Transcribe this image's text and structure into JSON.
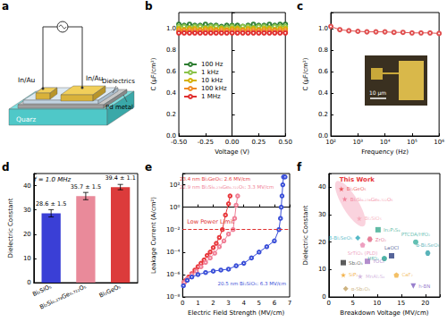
{
  "panel_labels": [
    "a",
    "b",
    "c",
    "d",
    "e",
    "f"
  ],
  "diagram": {
    "electrodes": [
      "In/Au",
      "In/Au"
    ],
    "layers": [
      "Dielectrics",
      "Pd metal",
      "Quarz"
    ]
  },
  "chart_data": [
    {
      "type": "line",
      "x_label": "Voltage (V)",
      "y_label": "C (μF/cm²)",
      "x": [
        -0.5,
        -0.45,
        -0.4,
        -0.35,
        -0.3,
        -0.25,
        -0.2,
        -0.15,
        -0.1,
        -0.05,
        0,
        0.05,
        0.1,
        0.15,
        0.2,
        0.25,
        0.3,
        0.35,
        0.4,
        0.45,
        0.5
      ],
      "series": [
        {
          "name": "100 Hz",
          "color": "#2e7d32",
          "values": [
            1.04,
            1.03,
            1.04,
            1.03,
            1.03,
            1.04,
            1.03,
            1.03,
            1.02,
            1.03,
            1.03,
            1.03,
            1.02,
            1.03,
            1.04,
            1.03,
            1.03,
            1.04,
            1.03,
            1.04,
            1.04
          ]
        },
        {
          "name": "1 kHz",
          "color": "#8bc34a",
          "values": [
            1.02,
            1.02,
            1.01,
            1.02,
            1.02,
            1.01,
            1.02,
            1.02,
            1.01,
            1.01,
            1.02,
            1.01,
            1.02,
            1.02,
            1.01,
            1.02,
            1.02,
            1.01,
            1.02,
            1.02,
            1.02
          ]
        },
        {
          "name": "10 kHz",
          "color": "#d4b000",
          "values": [
            1.0,
            0.99,
            1.0,
            1.0,
            0.99,
            1.0,
            1.0,
            0.99,
            1.0,
            0.99,
            1.0,
            1.0,
            0.99,
            1.0,
            1.0,
            0.99,
            1.0,
            1.0,
            0.99,
            1.0,
            1.0
          ]
        },
        {
          "name": "100 kHz",
          "color": "#f08a24",
          "values": [
            0.98,
            0.98,
            0.98,
            0.98,
            0.98,
            0.98,
            0.98,
            0.98,
            0.98,
            0.98,
            0.98,
            0.98,
            0.98,
            0.98,
            0.98,
            0.98,
            0.98,
            0.98,
            0.98,
            0.98,
            0.98
          ]
        },
        {
          "name": "1 MHz",
          "color": "#e03030",
          "values": [
            0.96,
            0.96,
            0.96,
            0.96,
            0.96,
            0.96,
            0.96,
            0.96,
            0.96,
            0.96,
            0.96,
            0.96,
            0.96,
            0.96,
            0.96,
            0.96,
            0.96,
            0.96,
            0.96,
            0.96,
            0.96
          ]
        }
      ],
      "marker": "open-circle",
      "line_style": "solid",
      "xlim": [
        -0.5,
        0.5
      ],
      "xticks": [
        {
          "value": -0.5,
          "label": "-0.50"
        },
        {
          "value": -0.25,
          "label": "-0.25"
        },
        {
          "value": 0,
          "label": "0.00"
        },
        {
          "value": 0.25,
          "label": "0.25"
        },
        {
          "value": 0.5,
          "label": "0.50"
        }
      ],
      "ylim": [
        0,
        1.15
      ],
      "yticks": [
        {
          "value": 0,
          "label": "0.0"
        },
        {
          "value": 0.2,
          "label": "0.2"
        },
        {
          "value": 0.4,
          "label": "0.4"
        },
        {
          "value": 0.6,
          "label": "0.6"
        },
        {
          "value": 0.8,
          "label": "0.8"
        },
        {
          "value": 1,
          "label": "1.0"
        }
      ],
      "legend": "left",
      "grid": false
    },
    {
      "type": "line",
      "x_label": "Frequency (Hz)",
      "y_label": "C (μF/cm²)",
      "log": "x",
      "x": [
        100,
        215,
        464,
        1000,
        2154,
        4642,
        10000,
        21544,
        46416,
        100000,
        215443,
        464159,
        1000000
      ],
      "values": [
        1.02,
        0.99,
        0.98,
        0.975,
        0.97,
        0.97,
        0.97,
        0.965,
        0.965,
        0.96,
        0.96,
        0.96,
        0.955
      ],
      "color": "#e05050",
      "marker": "open-circle",
      "line_style": "solid",
      "xlim": [
        100,
        1000000
      ],
      "xticks": [
        {
          "value": 100,
          "label": "10²"
        },
        {
          "value": 1000,
          "label": "10³"
        },
        {
          "value": 10000,
          "label": "10⁴"
        },
        {
          "value": 100000,
          "label": "10⁵"
        },
        {
          "value": 1000000,
          "label": "10⁶"
        }
      ],
      "ylim": [
        0,
        1.15
      ],
      "yticks": [
        {
          "value": 0,
          "label": "0.0"
        },
        {
          "value": 0.2,
          "label": "0.2"
        },
        {
          "value": 0.4,
          "label": "0.4"
        },
        {
          "value": 0.6,
          "label": "0.6"
        },
        {
          "value": 0.8,
          "label": "0.8"
        },
        {
          "value": 1,
          "label": "1.0"
        }
      ],
      "annotations": [
        "10 μm"
      ],
      "grid": false
    },
    {
      "type": "bar",
      "y_label": "Dielectric Constant",
      "categories": [
        "Bi₂SiO₅",
        "Bi₂Si₀.₂₇₈Ge₀.₇₂₂O₅",
        "Bi₂GeO₅"
      ],
      "values": [
        28.6,
        35.7,
        39.4
      ],
      "errors": [
        1.5,
        1.5,
        1.1
      ],
      "value_labels": [
        "28.6 ± 1.5",
        "35.7 ± 1.5",
        "39.4 ± 1.1"
      ],
      "colors": [
        "#3a3fd6",
        "#e98a9a",
        "#dc3b3b"
      ],
      "data_labels": true,
      "ylim": [
        0,
        45
      ],
      "yticks": [
        0,
        10,
        20,
        30,
        40
      ],
      "annotations": [
        "f = 1.0 MHz"
      ],
      "grid": false
    },
    {
      "type": "line",
      "x_label": "Electric Field Strength (MV/cm)",
      "y_label": "Leakage Current (A/cm²)",
      "log": "y",
      "series": [
        {
          "name": "23.4 nm Bi₂GeO₅: 2.6 MV/cm",
          "color": "#e8383c",
          "x": [
            0.1,
            0.2,
            0.4,
            0.6,
            0.8,
            1.0,
            1.2,
            1.4,
            1.6,
            1.8,
            2.0,
            2.2,
            2.4,
            2.6,
            2.8,
            3.0,
            3.1
          ],
          "values": [
            2e-07,
            3e-07,
            6e-07,
            1.2e-06,
            2.5e-06,
            5e-06,
            1e-05,
            2e-05,
            5e-05,
            0.0001,
            0.00025,
            0.0006,
            0.002,
            0.01,
            0.2,
            2,
            10
          ]
        },
        {
          "name": "22.9 nm Bi₂Si₀.₂₇₈Ge₀.₇₂₂O₅: 3.3 MV/cm",
          "color": "#f07f96",
          "x": [
            0.1,
            0.3,
            0.6,
            0.9,
            1.2,
            1.5,
            1.8,
            2.1,
            2.4,
            2.7,
            3.0,
            3.3,
            3.4,
            3.5,
            3.6
          ],
          "values": [
            2e-07,
            4e-07,
            1e-06,
            2e-06,
            5e-06,
            1.2e-05,
            3e-05,
            8e-05,
            0.0003,
            0.001,
            0.004,
            0.01,
            0.1,
            1.5,
            10
          ]
        },
        {
          "name": "20.5 nm Bi₂SiO₅: 6.3 MV/cm",
          "color": "#3a4fd8",
          "x": [
            0.05,
            0.3,
            0.6,
            1.0,
            1.5,
            2.0,
            2.5,
            3.0,
            3.5,
            4.0,
            4.5,
            5.0,
            5.5,
            6.0,
            6.3,
            6.4,
            6.45,
            6.5,
            6.55,
            6.6,
            6.7
          ],
          "values": [
            1e-07,
            3e-07,
            6e-07,
            1e-06,
            1.5e-06,
            2e-06,
            2.5e-06,
            3e-06,
            6e-06,
            1e-05,
            3e-05,
            0.0001,
            0.0003,
            0.001,
            0.01,
            0.1,
            1,
            10,
            100,
            500,
            500
          ]
        }
      ],
      "marker": "open-circle",
      "line_style": "solid",
      "reference_lines": [
        {
          "value": 0.01,
          "label": "Low Power Limit",
          "color": "#e03030",
          "line_style": "dashed"
        }
      ],
      "xlim": [
        0,
        7
      ],
      "xticks": [
        0,
        1,
        2,
        3,
        4,
        5,
        6,
        7
      ],
      "ylim": [
        1e-08,
        1000
      ],
      "yticks": [
        {
          "value": 1e-08,
          "label": "10⁻⁸"
        },
        {
          "value": 1e-06,
          "label": "10⁻⁶"
        },
        {
          "value": 0.0001,
          "label": "10⁻⁴"
        },
        {
          "value": 0.01,
          "label": "10⁻²"
        },
        {
          "value": 1,
          "label": "10⁰"
        },
        {
          "value": 100,
          "label": "10²"
        }
      ],
      "grid": false
    },
    {
      "type": "scatter",
      "x_label": "Breakdown Voltage (MV/cm)",
      "y_label": "Dielectric Constant",
      "points": [
        {
          "label": "Bi₂GeO₅",
          "x": 2.6,
          "y": 39.4,
          "color": "#e8383c",
          "marker": "star"
        },
        {
          "label": "Bi₂Si₀.₂₇₈Ge₀.₇₂₂O₅",
          "x": 3.3,
          "y": 35.7,
          "color": "#f06f8a",
          "marker": "star"
        },
        {
          "label": "Bi₂SiO₅",
          "x": 6.3,
          "y": 28.6,
          "color": "#f4a0b0",
          "marker": "star"
        },
        {
          "label": "In₂P₃S₉",
          "x": 10.2,
          "y": 24.5,
          "color": "#3aaa8f",
          "marker": "square"
        },
        {
          "label": "β-Bi₂SeO₅",
          "x": 6,
          "y": 21.5,
          "color": "#29a7b8",
          "marker": "diamond"
        },
        {
          "label": "ZrO₂",
          "x": 8.5,
          "y": 21,
          "color": "#e06080",
          "marker": "hexagon"
        },
        {
          "label": "SrTiO₃ (PLD)",
          "x": 7,
          "y": 19,
          "color": "#e987b0",
          "marker": "pentagon"
        },
        {
          "label": "PTCDA/HfO₂",
          "x": 18,
          "y": 20,
          "color": "#3cb0a0",
          "marker": "circle"
        },
        {
          "label": "α-Bi₂SeO₅",
          "x": 20.5,
          "y": 16,
          "color": "#2fa0a8",
          "marker": "hexagon"
        },
        {
          "label": "HfO₂",
          "x": 11.5,
          "y": 14,
          "color": "#20a090",
          "marker": "circle"
        },
        {
          "label": "LaOCl",
          "x": 13,
          "y": 15,
          "color": "#2c3e80",
          "marker": "square"
        },
        {
          "label": "Sb₂O₃",
          "x": 3,
          "y": 12.5,
          "color": "#333333",
          "marker": "square"
        },
        {
          "label": "YOCl",
          "x": 8,
          "y": 13,
          "color": "#a070c0",
          "marker": "square"
        },
        {
          "label": "SiP₂",
          "x": 3,
          "y": 8,
          "color": "#f0a020",
          "marker": "star"
        },
        {
          "label": "MnAl₂S₄",
          "x": 6.5,
          "y": 7.5,
          "color": "#c8a8d8",
          "marker": "star"
        },
        {
          "label": "CaF₂",
          "x": 14,
          "y": 8,
          "color": "#f0b040",
          "marker": "pentagon"
        },
        {
          "label": "h-BN",
          "x": 17.5,
          "y": 4,
          "color": "#8060c0",
          "marker": "triangle-down"
        },
        {
          "label": "α-Sb₂O₃",
          "x": 3.5,
          "y": 3,
          "color": "#c0a060",
          "marker": "diamond"
        }
      ],
      "xlim": [
        0,
        23
      ],
      "xticks": [
        0,
        5,
        10,
        15,
        20
      ],
      "ylim": [
        0,
        45
      ],
      "yticks": [
        0,
        10,
        20,
        30,
        40
      ],
      "annotations": [
        "This Work"
      ],
      "grid": false
    }
  ]
}
